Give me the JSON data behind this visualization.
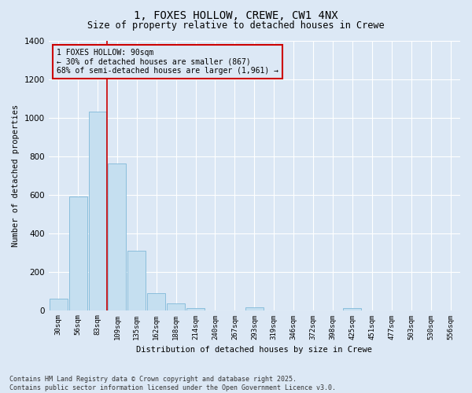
{
  "title": "1, FOXES HOLLOW, CREWE, CW1 4NX",
  "subtitle": "Size of property relative to detached houses in Crewe",
  "xlabel": "Distribution of detached houses by size in Crewe",
  "ylabel": "Number of detached properties",
  "footnote": "Contains HM Land Registry data © Crown copyright and database right 2025.\nContains public sector information licensed under the Open Government Licence v3.0.",
  "categories": [
    "30sqm",
    "56sqm",
    "83sqm",
    "109sqm",
    "135sqm",
    "162sqm",
    "188sqm",
    "214sqm",
    "240sqm",
    "267sqm",
    "293sqm",
    "319sqm",
    "346sqm",
    "372sqm",
    "398sqm",
    "425sqm",
    "451sqm",
    "477sqm",
    "503sqm",
    "530sqm",
    "556sqm"
  ],
  "values": [
    60,
    590,
    1030,
    760,
    310,
    90,
    35,
    10,
    0,
    0,
    15,
    0,
    0,
    0,
    0,
    10,
    0,
    0,
    0,
    0,
    0
  ],
  "bar_color": "#c5dff0",
  "bar_edge_color": "#7fb8d8",
  "annotation_text": "1 FOXES HOLLOW: 90sqm\n← 30% of detached houses are smaller (867)\n68% of semi-detached houses are larger (1,961) →",
  "annotation_box_color": "#cc0000",
  "vline_x": 2.5,
  "vline_color": "#cc0000",
  "ylim": [
    0,
    1400
  ],
  "yticks": [
    0,
    200,
    400,
    600,
    800,
    1000,
    1200,
    1400
  ],
  "background_color": "#dce8f5",
  "grid_color": "#ffffff",
  "title_fontsize": 10,
  "subtitle_fontsize": 8.5
}
